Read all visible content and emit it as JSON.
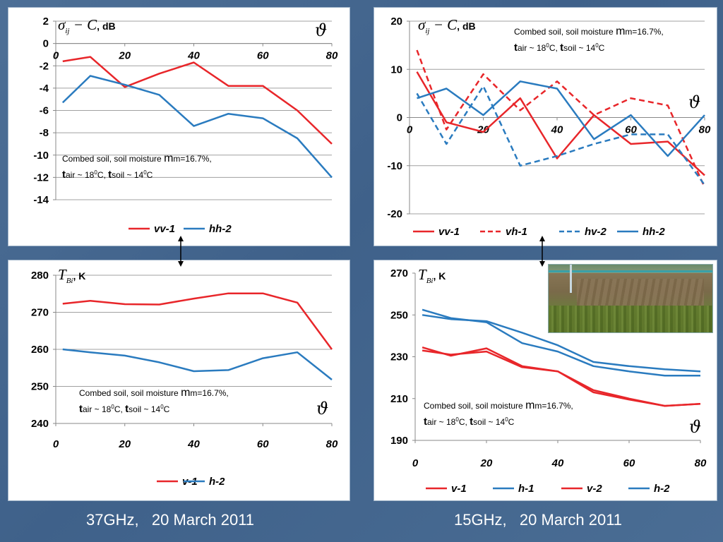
{
  "chart_data": [
    {
      "type": "line",
      "panel": "top-left",
      "ylabel_unit": "dB",
      "x": [
        2,
        10,
        20,
        30,
        40,
        50,
        60,
        70,
        80
      ],
      "xlim": [
        0,
        80
      ],
      "ylim": [
        -14,
        2
      ],
      "xticks": [
        "0",
        "20",
        "40",
        "60",
        "80"
      ],
      "yticks": [
        "2",
        "0",
        "-2",
        "-4",
        "-6",
        "-8",
        "-10",
        "-12",
        "-14"
      ],
      "series": [
        {
          "name": "vv-1",
          "color": "#e8262a",
          "dash": false,
          "values": [
            -1.6,
            -1.2,
            -3.9,
            -2.7,
            -1.7,
            -3.8,
            -3.8,
            -6.0,
            -9.0
          ]
        },
        {
          "name": "hh-2",
          "color": "#2a7bbf",
          "dash": false,
          "values": [
            -5.3,
            -2.9,
            -3.7,
            -4.6,
            -7.4,
            -6.3,
            -6.7,
            -8.5,
            -12.0
          ]
        }
      ],
      "grid": true,
      "legend": "bottom"
    },
    {
      "type": "line",
      "panel": "top-right",
      "ylabel_unit": "dB",
      "x": [
        2,
        10,
        20,
        30,
        40,
        50,
        60,
        70,
        80
      ],
      "xlim": [
        0,
        80
      ],
      "ylim": [
        -20,
        20
      ],
      "xticks": [
        "0",
        "20",
        "40",
        "60",
        "80"
      ],
      "yticks": [
        "20",
        "10",
        "0",
        "-10",
        "-20"
      ],
      "series": [
        {
          "name": "vv-1",
          "color": "#e8262a",
          "dash": false,
          "values": [
            9.5,
            -1.0,
            -3.0,
            4.0,
            -8.5,
            0.5,
            -5.5,
            -5.0,
            -12.0
          ]
        },
        {
          "name": "vh-1",
          "color": "#e8262a",
          "dash": true,
          "values": [
            14.0,
            -2.5,
            9.0,
            1.5,
            7.5,
            0.5,
            4.0,
            2.5,
            -14.5
          ]
        },
        {
          "name": "hv-2",
          "color": "#2a7bbf",
          "dash": true,
          "values": [
            5.0,
            -5.5,
            6.5,
            -10.0,
            -8.0,
            -5.5,
            -3.5,
            -3.5,
            -14.0
          ]
        },
        {
          "name": "hh-2",
          "color": "#2a7bbf",
          "dash": false,
          "values": [
            4.0,
            6.0,
            0.5,
            7.5,
            6.0,
            -4.5,
            0.5,
            -8.0,
            0.5
          ]
        }
      ],
      "grid": true,
      "legend": "bottom"
    },
    {
      "type": "line",
      "panel": "bottom-left",
      "ylabel_unit": "K",
      "x": [
        2,
        10,
        20,
        30,
        40,
        50,
        60,
        70,
        80
      ],
      "xlim": [
        0,
        80
      ],
      "ylim": [
        240,
        280
      ],
      "xticks": [
        "0",
        "20",
        "40",
        "60",
        "80"
      ],
      "yticks": [
        "280",
        "270",
        "260",
        "250",
        "240"
      ],
      "series": [
        {
          "name": "v-1",
          "color": "#e8262a",
          "dash": false,
          "values": [
            272.3,
            273.1,
            272.2,
            272.1,
            273.7,
            275.1,
            275.1,
            272.6,
            260.0
          ]
        },
        {
          "name": "h-2",
          "color": "#2a7bbf",
          "dash": false,
          "values": [
            260.0,
            259.2,
            258.3,
            256.5,
            254.1,
            254.4,
            257.6,
            259.2,
            251.8
          ]
        }
      ],
      "grid": true,
      "legend": "bottom"
    },
    {
      "type": "line",
      "panel": "bottom-right",
      "ylabel_unit": "K",
      "x": [
        2,
        10,
        20,
        30,
        40,
        50,
        60,
        70,
        80
      ],
      "xlim": [
        0,
        80
      ],
      "ylim": [
        190,
        270
      ],
      "xticks": [
        "0",
        "20",
        "40",
        "60",
        "80"
      ],
      "yticks": [
        "270",
        "250",
        "230",
        "210",
        "190"
      ],
      "series": [
        {
          "name": "v-1",
          "color": "#e8262a",
          "dash": false,
          "values": [
            234.5,
            230.5,
            234.0,
            225.5,
            223.0,
            213.0,
            209.5,
            206.5,
            207.5
          ]
        },
        {
          "name": "h-1",
          "color": "#2a7bbf",
          "dash": false,
          "values": [
            252.5,
            248.5,
            246.5,
            236.5,
            232.5,
            225.5,
            223.0,
            221.0,
            221.0
          ]
        },
        {
          "name": "v-2",
          "color": "#e8262a",
          "dash": false,
          "values": [
            233.0,
            231.0,
            232.5,
            225.0,
            223.0,
            214.0,
            210.0,
            206.5,
            207.5
          ]
        },
        {
          "name": "h-2",
          "color": "#2a7bbf",
          "dash": false,
          "values": [
            250.0,
            248.0,
            247.0,
            241.5,
            235.5,
            227.5,
            225.5,
            224.0,
            223.0
          ]
        }
      ],
      "grid": false,
      "legend": "bottom"
    }
  ],
  "labels": {
    "sigma_expr": "σ",
    "sigma_sub": "ij",
    "sigma_rest": " − C",
    "db_unit": ", dB",
    "tb_expr": "T",
    "tb_sub": "Bi",
    "k_unit": ", K",
    "theta": "ϑ"
  },
  "note": {
    "line1_prefix": "Combed soil, soil moisture ",
    "m_symbol": "m",
    "line1_suffix": "m=16.7%,",
    "t_symbol": "t",
    "air_text": "air ~ 18",
    "sup0": "0",
    "air_unit": "C, ",
    "soil_text": "soil ~ 14",
    "soil_unit": "C"
  },
  "captions": {
    "left": "37GHz,   20 March 2011",
    "right": "15GHz,   20 March 2011"
  },
  "colors": {
    "red": "#e8262a",
    "blue": "#2a7bbf"
  }
}
